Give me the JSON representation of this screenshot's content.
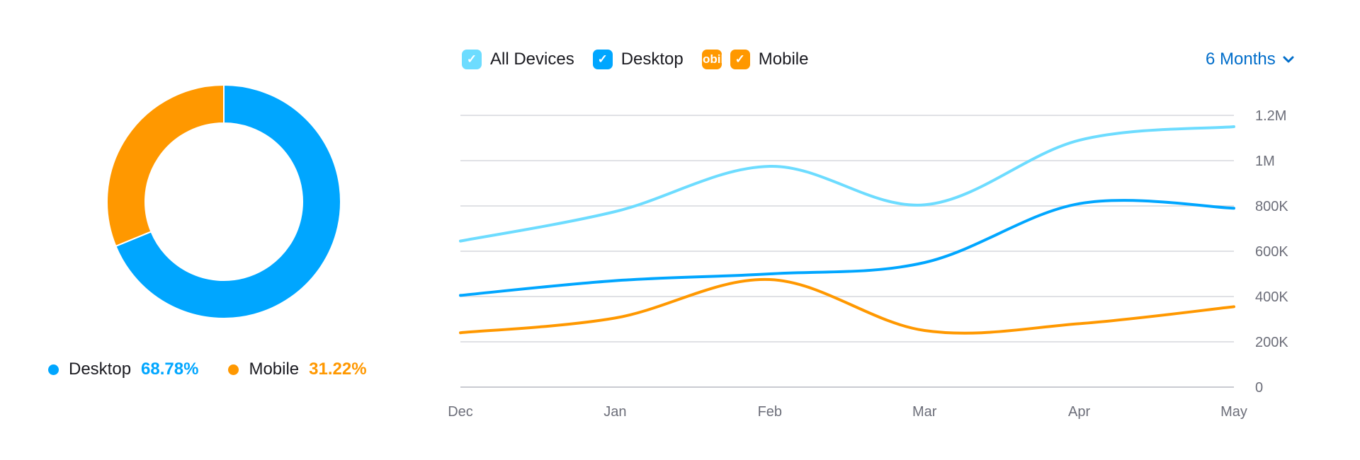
{
  "chart_data": [
    {
      "type": "pie",
      "variant": "donut",
      "categories": [
        "Desktop",
        "Mobile"
      ],
      "values": [
        68.78,
        31.22
      ],
      "value_labels": [
        "68.78%",
        "31.22%"
      ],
      "colors": [
        "#00a6ff",
        "#ff9800"
      ]
    },
    {
      "type": "line",
      "categories": [
        "Dec",
        "Jan",
        "Feb",
        "Mar",
        "Apr",
        "May"
      ],
      "series": [
        {
          "name": "All Devices",
          "color": "#6ddcff",
          "values": [
            645000,
            775000,
            975000,
            805000,
            1090000,
            1150000
          ]
        },
        {
          "name": "Desktop",
          "color": "#00a6ff",
          "values": [
            405000,
            470000,
            500000,
            550000,
            810000,
            790000
          ]
        },
        {
          "name": "Mobile",
          "color": "#ff9800",
          "values": [
            240000,
            305000,
            475000,
            250000,
            280000,
            355000
          ]
        }
      ],
      "ylim": [
        0,
        1200000
      ],
      "yticks": [
        0,
        200000,
        400000,
        600000,
        800000,
        1000000,
        1200000
      ],
      "ytick_labels": [
        "0",
        "200K",
        "400K",
        "600K",
        "800K",
        "1M",
        "1.2M"
      ],
      "grid": true,
      "legend": "top-left"
    }
  ],
  "legend": {
    "all_devices": "All Devices",
    "desktop": "Desktop",
    "mobile": "Mobile",
    "check": "✓"
  },
  "range_selector": {
    "label": "6 Months"
  }
}
